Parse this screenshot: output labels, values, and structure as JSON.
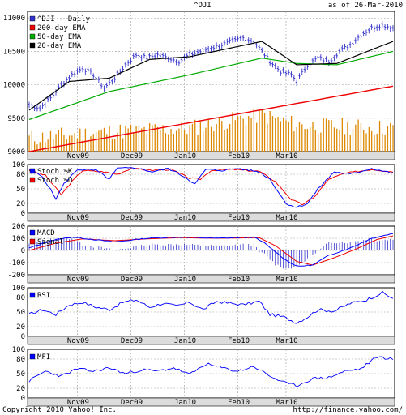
{
  "header": {
    "symbol": "^DJI",
    "as_of": "as of 26-Mar-2010"
  },
  "footer": {
    "copyright": "Copyright 2010 Yahoo! Inc.",
    "url": "http://finance.yahoo.com/"
  },
  "colors": {
    "price": "#3333cc",
    "ema200": "#ee0000",
    "ema50": "#00aa00",
    "ema20": "#000000",
    "volume": "#dd8800",
    "stoch_k": "#0000ff",
    "stoch_d": "#ee0000",
    "grid": "#999999"
  },
  "chart_data": [
    {
      "type": "line",
      "panel": "price",
      "legend": [
        "^DJI - Daily",
        "200-day EMA",
        "50-day EMA",
        "20-day EMA"
      ],
      "legend_placement": "top-left",
      "ylim": [
        9000,
        11100
      ],
      "yticks": [
        9000,
        9500,
        10000,
        10500,
        11000
      ],
      "xticks": [
        "Nov09",
        "Dec09",
        "Jan10",
        "Feb10",
        "Mar10"
      ],
      "close_keypoints": [
        [
          0,
          9700
        ],
        [
          4,
          9650
        ],
        [
          8,
          9800
        ],
        [
          12,
          10000
        ],
        [
          16,
          10150
        ],
        [
          20,
          10250
        ],
        [
          24,
          10150
        ],
        [
          28,
          9950
        ],
        [
          32,
          10100
        ],
        [
          36,
          10300
        ],
        [
          40,
          10450
        ],
        [
          44,
          10400
        ],
        [
          48,
          10450
        ],
        [
          52,
          10400
        ],
        [
          56,
          10350
        ],
        [
          60,
          10450
        ],
        [
          64,
          10500
        ],
        [
          68,
          10550
        ],
        [
          72,
          10600
        ],
        [
          76,
          10650
        ],
        [
          80,
          10700
        ],
        [
          84,
          10650
        ],
        [
          87,
          10500
        ],
        [
          90,
          10350
        ],
        [
          94,
          10200
        ],
        [
          98,
          10150
        ],
        [
          100,
          10050
        ],
        [
          104,
          10300
        ],
        [
          108,
          10400
        ],
        [
          112,
          10350
        ],
        [
          116,
          10500
        ],
        [
          120,
          10600
        ],
        [
          124,
          10750
        ],
        [
          128,
          10850
        ],
        [
          132,
          10900
        ],
        [
          136,
          10850
        ]
      ],
      "ema200_keypoints": [
        [
          0,
          9000
        ],
        [
          136,
          9980
        ]
      ],
      "ema50_keypoints": [
        [
          0,
          9480
        ],
        [
          30,
          9900
        ],
        [
          60,
          10150
        ],
        [
          87,
          10400
        ],
        [
          100,
          10320
        ],
        [
          115,
          10300
        ],
        [
          136,
          10500
        ]
      ],
      "ema20_keypoints": [
        [
          0,
          9620
        ],
        [
          15,
          10050
        ],
        [
          30,
          10100
        ],
        [
          45,
          10380
        ],
        [
          60,
          10420
        ],
        [
          87,
          10650
        ],
        [
          100,
          10300
        ],
        [
          115,
          10320
        ],
        [
          136,
          10650
        ]
      ],
      "volume_keypoints": [
        [
          0,
          9200
        ],
        [
          30,
          9300
        ],
        [
          60,
          9350
        ],
        [
          87,
          9550
        ],
        [
          100,
          9400
        ],
        [
          136,
          9350
        ]
      ]
    },
    {
      "type": "line",
      "panel": "stochastic",
      "legend": [
        "Stoch %K",
        "Stoch %D"
      ],
      "ylim": [
        0,
        100
      ],
      "yticks": [
        0,
        20,
        50,
        80,
        100
      ],
      "xticks": [
        "Nov09",
        "Dec09",
        "Jan10",
        "Feb10",
        "Mar10"
      ],
      "k_keypoints": [
        [
          0,
          90
        ],
        [
          5,
          75
        ],
        [
          10,
          30
        ],
        [
          13,
          60
        ],
        [
          18,
          90
        ],
        [
          25,
          88
        ],
        [
          30,
          70
        ],
        [
          33,
          92
        ],
        [
          40,
          93
        ],
        [
          46,
          85
        ],
        [
          52,
          92
        ],
        [
          58,
          75
        ],
        [
          62,
          60
        ],
        [
          66,
          90
        ],
        [
          72,
          88
        ],
        [
          78,
          92
        ],
        [
          86,
          85
        ],
        [
          90,
          70
        ],
        [
          96,
          20
        ],
        [
          100,
          12
        ],
        [
          104,
          20
        ],
        [
          108,
          50
        ],
        [
          114,
          85
        ],
        [
          120,
          80
        ],
        [
          128,
          92
        ],
        [
          136,
          82
        ]
      ],
      "d_keypoints": [
        [
          0,
          88
        ],
        [
          6,
          78
        ],
        [
          12,
          38
        ],
        [
          16,
          65
        ],
        [
          20,
          88
        ],
        [
          28,
          85
        ],
        [
          33,
          80
        ],
        [
          38,
          92
        ],
        [
          46,
          88
        ],
        [
          53,
          90
        ],
        [
          60,
          72
        ],
        [
          64,
          70
        ],
        [
          68,
          88
        ],
        [
          76,
          90
        ],
        [
          86,
          86
        ],
        [
          92,
          65
        ],
        [
          98,
          28
        ],
        [
          102,
          18
        ],
        [
          106,
          30
        ],
        [
          112,
          70
        ],
        [
          118,
          82
        ],
        [
          128,
          90
        ],
        [
          136,
          85
        ]
      ]
    },
    {
      "type": "line",
      "panel": "macd",
      "legend": [
        "MACD",
        "Signal"
      ],
      "ylim": [
        -200,
        200
      ],
      "yticks": [
        -200,
        -100,
        0,
        100,
        200
      ],
      "xticks": [
        "Nov09",
        "Dec09",
        "Jan10",
        "Feb10",
        "Mar10"
      ],
      "macd_keypoints": [
        [
          0,
          20
        ],
        [
          8,
          80
        ],
        [
          16,
          110
        ],
        [
          24,
          90
        ],
        [
          32,
          70
        ],
        [
          44,
          100
        ],
        [
          56,
          110
        ],
        [
          70,
          100
        ],
        [
          84,
          110
        ],
        [
          88,
          60
        ],
        [
          96,
          -80
        ],
        [
          100,
          -130
        ],
        [
          106,
          -120
        ],
        [
          112,
          -40
        ],
        [
          120,
          20
        ],
        [
          128,
          100
        ],
        [
          136,
          140
        ]
      ],
      "signal_keypoints": [
        [
          0,
          0
        ],
        [
          10,
          60
        ],
        [
          20,
          95
        ],
        [
          32,
          80
        ],
        [
          44,
          95
        ],
        [
          56,
          105
        ],
        [
          70,
          100
        ],
        [
          86,
          105
        ],
        [
          92,
          40
        ],
        [
          100,
          -90
        ],
        [
          106,
          -120
        ],
        [
          114,
          -60
        ],
        [
          122,
          10
        ],
        [
          130,
          90
        ],
        [
          136,
          120
        ]
      ]
    },
    {
      "type": "line",
      "panel": "rsi",
      "legend": [
        "RSI"
      ],
      "ylim": [
        0,
        100
      ],
      "yticks": [
        0,
        20,
        50,
        80,
        100
      ],
      "xticks": [
        "Nov09",
        "Dec09",
        "Jan10",
        "Feb10",
        "Mar10"
      ],
      "keypoints": [
        [
          0,
          45
        ],
        [
          5,
          55
        ],
        [
          10,
          45
        ],
        [
          15,
          65
        ],
        [
          20,
          70
        ],
        [
          25,
          60
        ],
        [
          30,
          55
        ],
        [
          35,
          70
        ],
        [
          40,
          75
        ],
        [
          45,
          60
        ],
        [
          50,
          68
        ],
        [
          55,
          62
        ],
        [
          60,
          70
        ],
        [
          65,
          55
        ],
        [
          70,
          72
        ],
        [
          75,
          68
        ],
        [
          80,
          65
        ],
        [
          86,
          72
        ],
        [
          90,
          45
        ],
        [
          95,
          40
        ],
        [
          100,
          28
        ],
        [
          104,
          40
        ],
        [
          108,
          55
        ],
        [
          114,
          52
        ],
        [
          120,
          68
        ],
        [
          126,
          75
        ],
        [
          132,
          90
        ],
        [
          136,
          78
        ]
      ]
    },
    {
      "type": "line",
      "panel": "mfi",
      "legend": [
        "MFI"
      ],
      "ylim": [
        0,
        100
      ],
      "yticks": [
        0,
        20,
        50,
        80,
        100
      ],
      "xticks": [
        "Nov09",
        "Dec09",
        "Jan10",
        "Feb10",
        "Mar10"
      ],
      "keypoints": [
        [
          0,
          35
        ],
        [
          6,
          55
        ],
        [
          12,
          45
        ],
        [
          18,
          60
        ],
        [
          24,
          55
        ],
        [
          30,
          62
        ],
        [
          36,
          50
        ],
        [
          42,
          58
        ],
        [
          48,
          55
        ],
        [
          54,
          62
        ],
        [
          60,
          48
        ],
        [
          66,
          70
        ],
        [
          72,
          62
        ],
        [
          78,
          55
        ],
        [
          84,
          65
        ],
        [
          90,
          45
        ],
        [
          96,
          30
        ],
        [
          100,
          25
        ],
        [
          106,
          40
        ],
        [
          112,
          42
        ],
        [
          118,
          55
        ],
        [
          124,
          60
        ],
        [
          130,
          85
        ],
        [
          136,
          80
        ]
      ]
    }
  ]
}
